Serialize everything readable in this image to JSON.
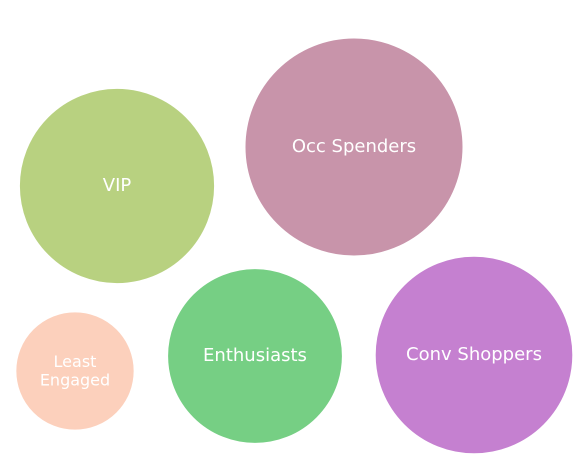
{
  "chart_data": {
    "type": "bubble",
    "title": "",
    "legend": "none",
    "grid": false,
    "items": [
      {
        "label": "Occ Spenders",
        "value": 100,
        "color": "#c894aa"
      },
      {
        "label": "VIP",
        "value": 80,
        "color": "#b8d180"
      },
      {
        "label": "Conv Shoppers",
        "value": 82,
        "color": "#c580d0"
      },
      {
        "label": "Enthusiasts",
        "value": 64,
        "color": "#76cf84"
      },
      {
        "label": "Least Engaged",
        "value": 29,
        "color": "#fcd0bc"
      }
    ]
  }
}
